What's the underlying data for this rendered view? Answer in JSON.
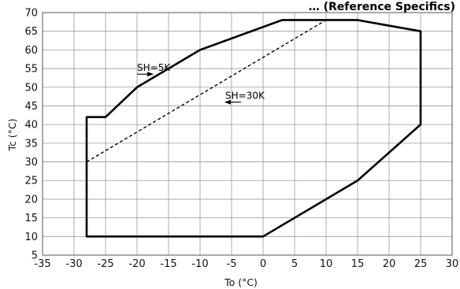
{
  "chart_data": {
    "type": "line",
    "title": "… (Reference Specifics)",
    "xlabel": "To (°C)",
    "ylabel": "Tc (°C)",
    "xlim": [
      -35,
      30
    ],
    "ylim": [
      5,
      70
    ],
    "x_ticks": [
      -35,
      -30,
      -25,
      -20,
      -15,
      -10,
      -5,
      0,
      5,
      10,
      15,
      20,
      25,
      30
    ],
    "y_ticks": [
      5,
      10,
      15,
      20,
      25,
      30,
      35,
      40,
      45,
      50,
      55,
      60,
      65,
      70
    ],
    "grid": true,
    "series": [
      {
        "style": "solid",
        "x": [
          -28,
          -28,
          -25,
          -20,
          -10,
          3,
          15,
          25,
          25,
          15,
          0,
          -28,
          -28
        ],
        "y": [
          35,
          42,
          42,
          50,
          60,
          68,
          68,
          65,
          40,
          25,
          10,
          10,
          35
        ]
      },
      {
        "style": "dashed",
        "x": [
          -28,
          10
        ],
        "y": [
          30,
          68
        ]
      }
    ],
    "annotations": [
      {
        "text": "SH=5K",
        "arrow_from": [
          -20,
          53.5
        ],
        "arrow_to": [
          -17.5,
          53.5
        ]
      },
      {
        "text": "SH=30K",
        "arrow_from": [
          -3.5,
          46
        ],
        "arrow_to": [
          -6,
          46
        ]
      }
    ]
  },
  "colors": {
    "line": "#000000",
    "grid": "#9a9a9a",
    "background": "#ffffff"
  }
}
